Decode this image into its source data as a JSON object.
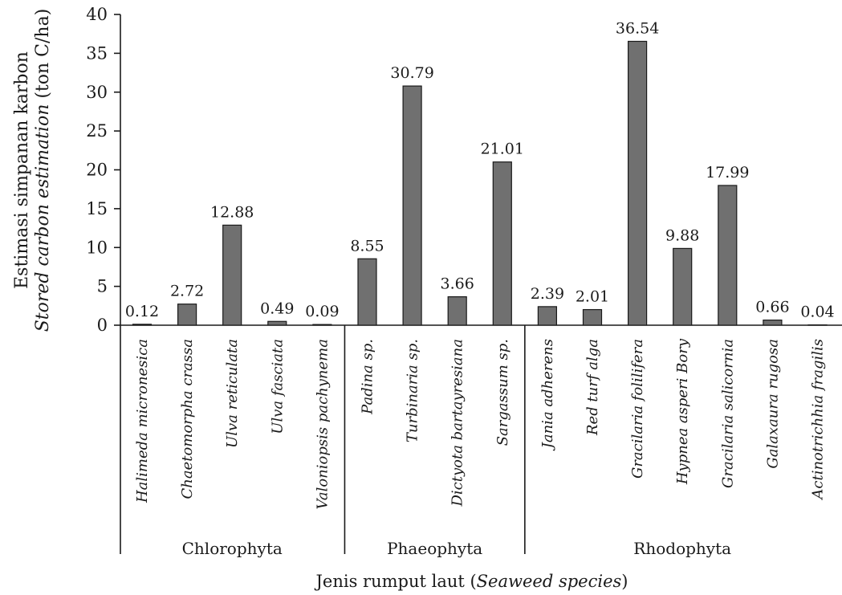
{
  "chart_data": {
    "type": "bar",
    "ylabel_line1": "Estimasi simpanan karbon",
    "ylabel_line2_italic": "Stored carbon estimation",
    "ylabel_line2_rest": " (ton C/ha)",
    "xlabel_plain": "Jenis rumput laut (",
    "xlabel_italic": "Seaweed species",
    "xlabel_close": ")",
    "ylim": [
      0,
      40
    ],
    "yticks": [
      0,
      5,
      10,
      15,
      20,
      25,
      30,
      35,
      40
    ],
    "categories": [
      "Halimeda micronesica",
      "Chaetomorpha crassa",
      "Ulva reticulata",
      "Ulva fasciata",
      "Valoniopsis pachynema",
      "Padina sp.",
      "Turbinaria sp.",
      "Dictyota  bartayresiana",
      "Sargassum sp.",
      "Jania adherens",
      "Red turf alga",
      "Gracilaria folilifera",
      "Hypnea asperi Bory",
      "Gracilaria salicornia",
      "Galaxaura rugosa",
      "Actinotrichhia fragilis"
    ],
    "values": [
      0.12,
      2.72,
      12.88,
      0.49,
      0.09,
      8.55,
      30.79,
      3.66,
      21.01,
      2.39,
      2.01,
      36.54,
      9.88,
      17.99,
      0.66,
      0.04
    ],
    "value_labels": [
      "0.12",
      "2.72",
      "12.88",
      "0.49",
      "0.09",
      "8.55",
      "30.79",
      "3.66",
      "21.01",
      "2.39",
      "2.01",
      "36.54",
      "9.88",
      "17.99",
      "0.66",
      "0.04"
    ],
    "groups": [
      {
        "name": "Chlorophyta",
        "start": 0,
        "end": 4
      },
      {
        "name": "Phaeophyta",
        "start": 5,
        "end": 8
      },
      {
        "name": "Rhodophyta",
        "start": 9,
        "end": 15
      }
    ],
    "bar_color": "#707070",
    "grid": false,
    "legend": "none"
  }
}
